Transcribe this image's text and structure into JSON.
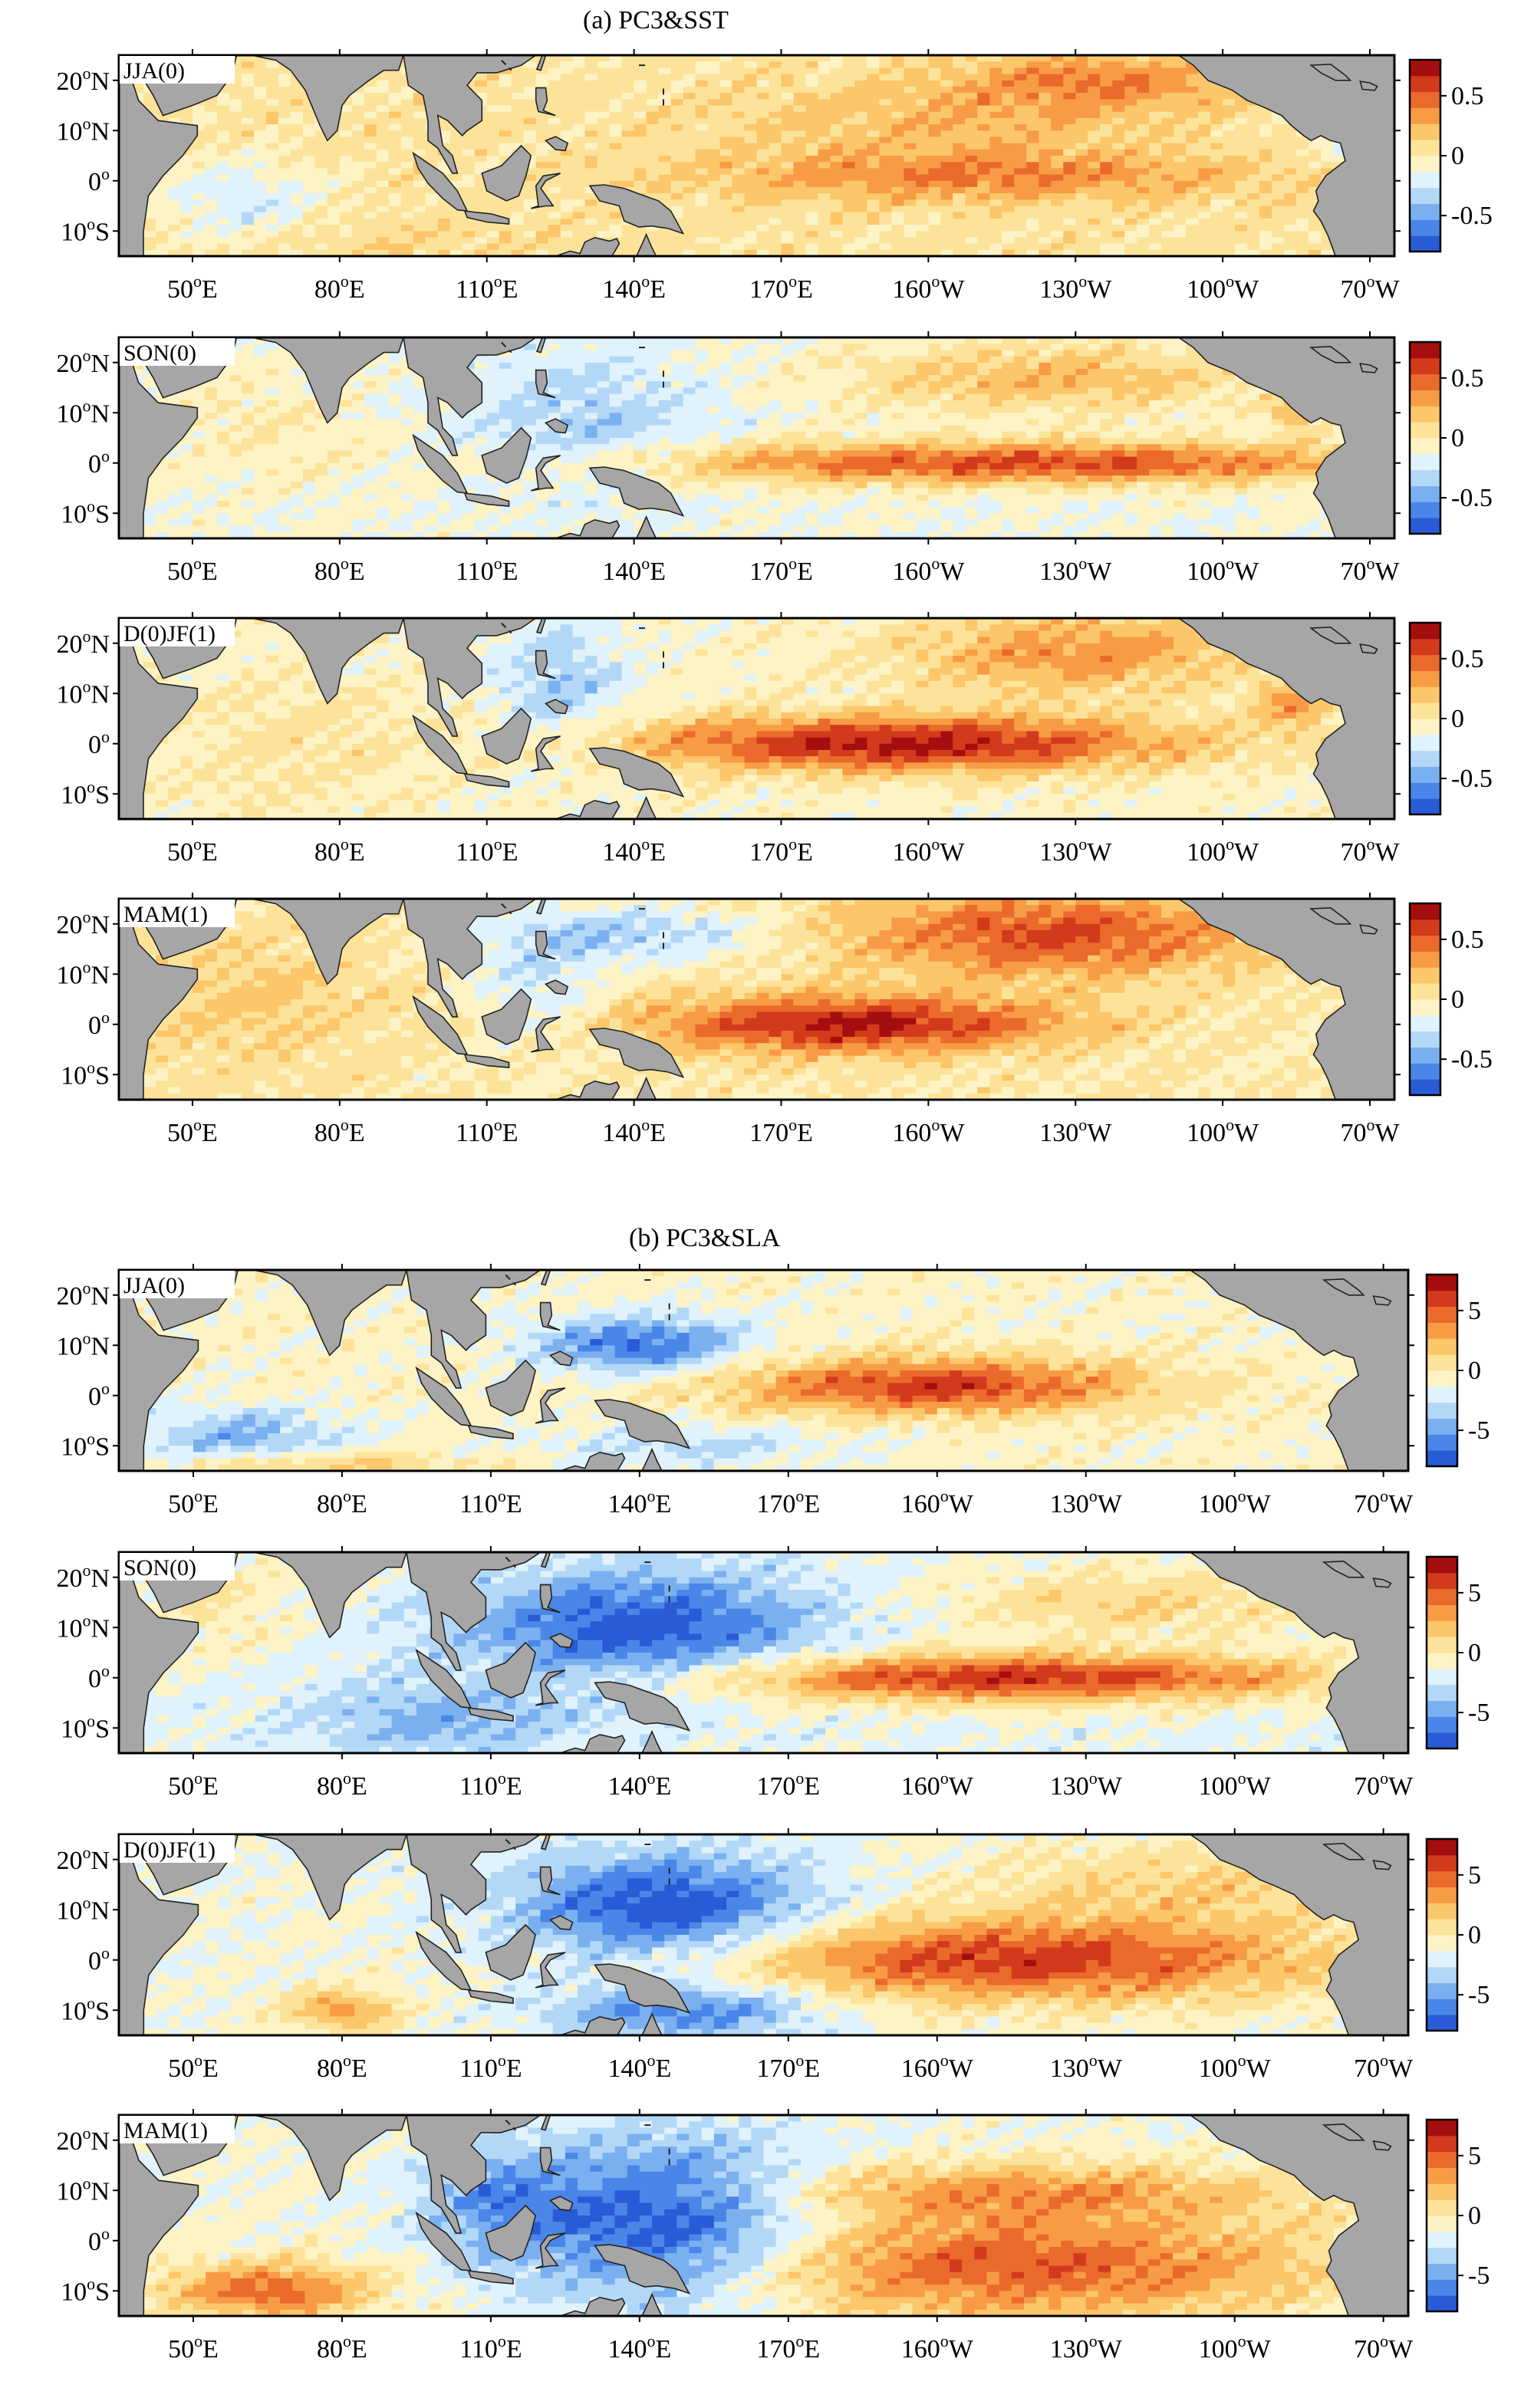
{
  "figure": {
    "sections": [
      {
        "id": "a",
        "title": "(a)  PC3&SST",
        "colorbar": {
          "ticks": [
            "0.5",
            "0",
            "-0.5"
          ],
          "range": [
            -0.8,
            0.8
          ]
        },
        "panels": [
          {
            "season": "JJA(0)",
            "pattern": "sst_jja0"
          },
          {
            "season": "SON(0)",
            "pattern": "sst_son0"
          },
          {
            "season": "D(0)JF(1)",
            "pattern": "sst_djf1"
          },
          {
            "season": "MAM(1)",
            "pattern": "sst_mam1"
          }
        ]
      },
      {
        "id": "b",
        "title": "(b)  PC3&SLA",
        "colorbar": {
          "ticks": [
            "5",
            "0",
            "-5"
          ],
          "range": [
            -8,
            8
          ]
        },
        "panels": [
          {
            "season": "JJA(0)",
            "pattern": "sla_jja0"
          },
          {
            "season": "SON(0)",
            "pattern": "sla_son0"
          },
          {
            "season": "D(0)JF(1)",
            "pattern": "sla_djf1"
          },
          {
            "season": "MAM(1)",
            "pattern": "sla_mam1"
          }
        ]
      }
    ],
    "lat_ticks": [
      {
        "lat": 20,
        "num": "20",
        "sup": "o",
        "suffix": "N"
      },
      {
        "lat": 10,
        "num": "10",
        "sup": "o",
        "suffix": "N"
      },
      {
        "lat": 0,
        "num": "0",
        "sup": "o",
        "suffix": ""
      },
      {
        "lat": -10,
        "num": "10",
        "sup": "o",
        "suffix": "S"
      }
    ],
    "lon_ticks": [
      {
        "lon": 50,
        "num": "50",
        "sup": "o",
        "suffix": "E"
      },
      {
        "lon": 80,
        "num": "80",
        "sup": "o",
        "suffix": "E"
      },
      {
        "lon": 110,
        "num": "110",
        "sup": "o",
        "suffix": "E"
      },
      {
        "lon": 140,
        "num": "140",
        "sup": "o",
        "suffix": "E"
      },
      {
        "lon": 170,
        "num": "170",
        "sup": "o",
        "suffix": "E"
      },
      {
        "lon": 200,
        "num": "160",
        "sup": "o",
        "suffix": "W"
      },
      {
        "lon": 230,
        "num": "130",
        "sup": "o",
        "suffix": "W"
      },
      {
        "lon": 260,
        "num": "100",
        "sup": "o",
        "suffix": "W"
      },
      {
        "lon": 290,
        "num": "70",
        "sup": "o",
        "suffix": "W"
      }
    ],
    "colormap": [
      "#2a5bd6",
      "#4a86e8",
      "#7bb0f0",
      "#b3d8f7",
      "#e0f2fb",
      "#fdf3c4",
      "#fde39a",
      "#fcc66a",
      "#f79c45",
      "#ea6a2c",
      "#d23a1c",
      "#a50e0e"
    ]
  }
}
